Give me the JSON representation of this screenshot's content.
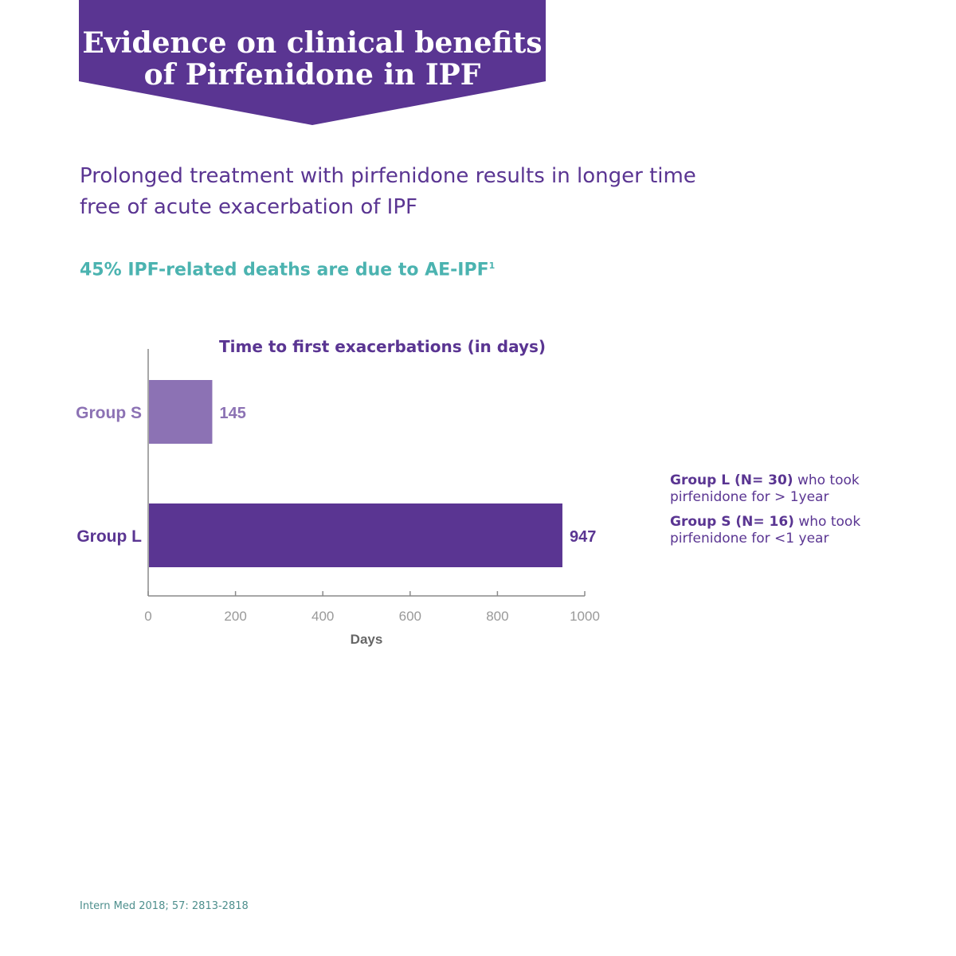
{
  "banner": {
    "line1": "Evidence on clinical benefits",
    "line2": "of Pirfenidone in IPF"
  },
  "subtitle": {
    "line1": "Prolonged treatment with pirfenidone results in longer time",
    "line2": "free of acute exacerbation of IPF"
  },
  "highlight": {
    "text": "45% IPF-related deaths are due to AE-IPF",
    "superscript": "1"
  },
  "legend": [
    {
      "bold": "Group L (N= 30)",
      "rest_a": "who took",
      "rest_b": "pirfenidone for > 1year"
    },
    {
      "bold": "Group S (N= 16)",
      "rest_a": "who took",
      "rest_b": "pirfenidone for <1 year"
    }
  ],
  "footnote": "Intern Med 2018; 57: 2813-2818",
  "colors": {
    "primary": "#5a3592",
    "light_purple": "#8c72b4",
    "teal": "#4bb3b0",
    "axis_gray": "#8a8a8a"
  },
  "chart_data": {
    "type": "bar",
    "orientation": "horizontal",
    "title": "Time to first exacerbations (in days)",
    "xlabel": "Days",
    "ylabel": "",
    "categories": [
      "Group S",
      "Group L"
    ],
    "values": [
      145,
      947
    ],
    "value_labels": [
      "145",
      "947"
    ],
    "bar_colors": [
      "#8c72b4",
      "#5a3592"
    ],
    "xlim": [
      0,
      1000
    ],
    "xticks": [
      0,
      200,
      400,
      600,
      800,
      1000
    ],
    "xtick_labels": [
      "0",
      "200",
      "400",
      "600",
      "800",
      "1000"
    ],
    "grid": false,
    "legend_position": "right"
  }
}
